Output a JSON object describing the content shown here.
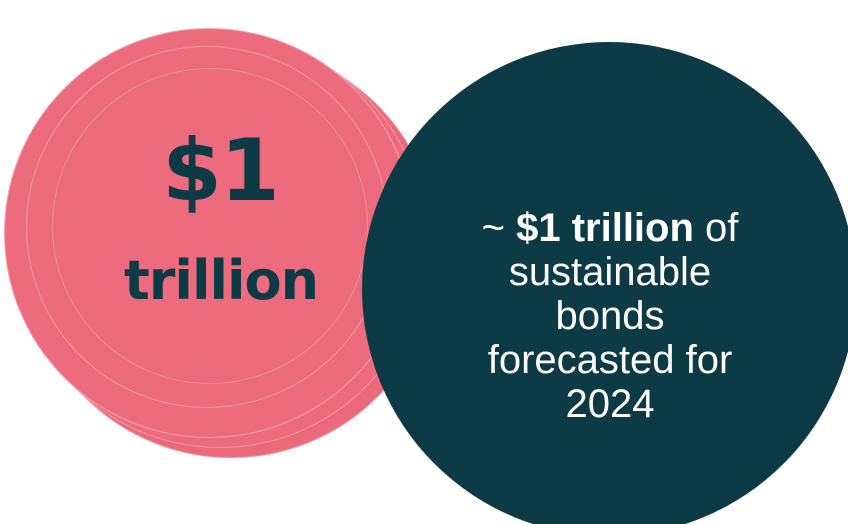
{
  "colors": {
    "coin": "#ec6b7c",
    "coin_edge": "#f5a3ad",
    "dark_circle": "#0c3a45",
    "big_text": "#0c3a45",
    "circle_text": "#ffffff"
  },
  "coin_label": {
    "amount": "$1",
    "unit": "trillion"
  },
  "circle_text": {
    "prefix": "~ ",
    "highlight": "$1 trillion",
    "line1_rest": " of",
    "line2": "sustainable",
    "line3": "bonds",
    "line4": "forecasted for",
    "line5": "2024"
  }
}
